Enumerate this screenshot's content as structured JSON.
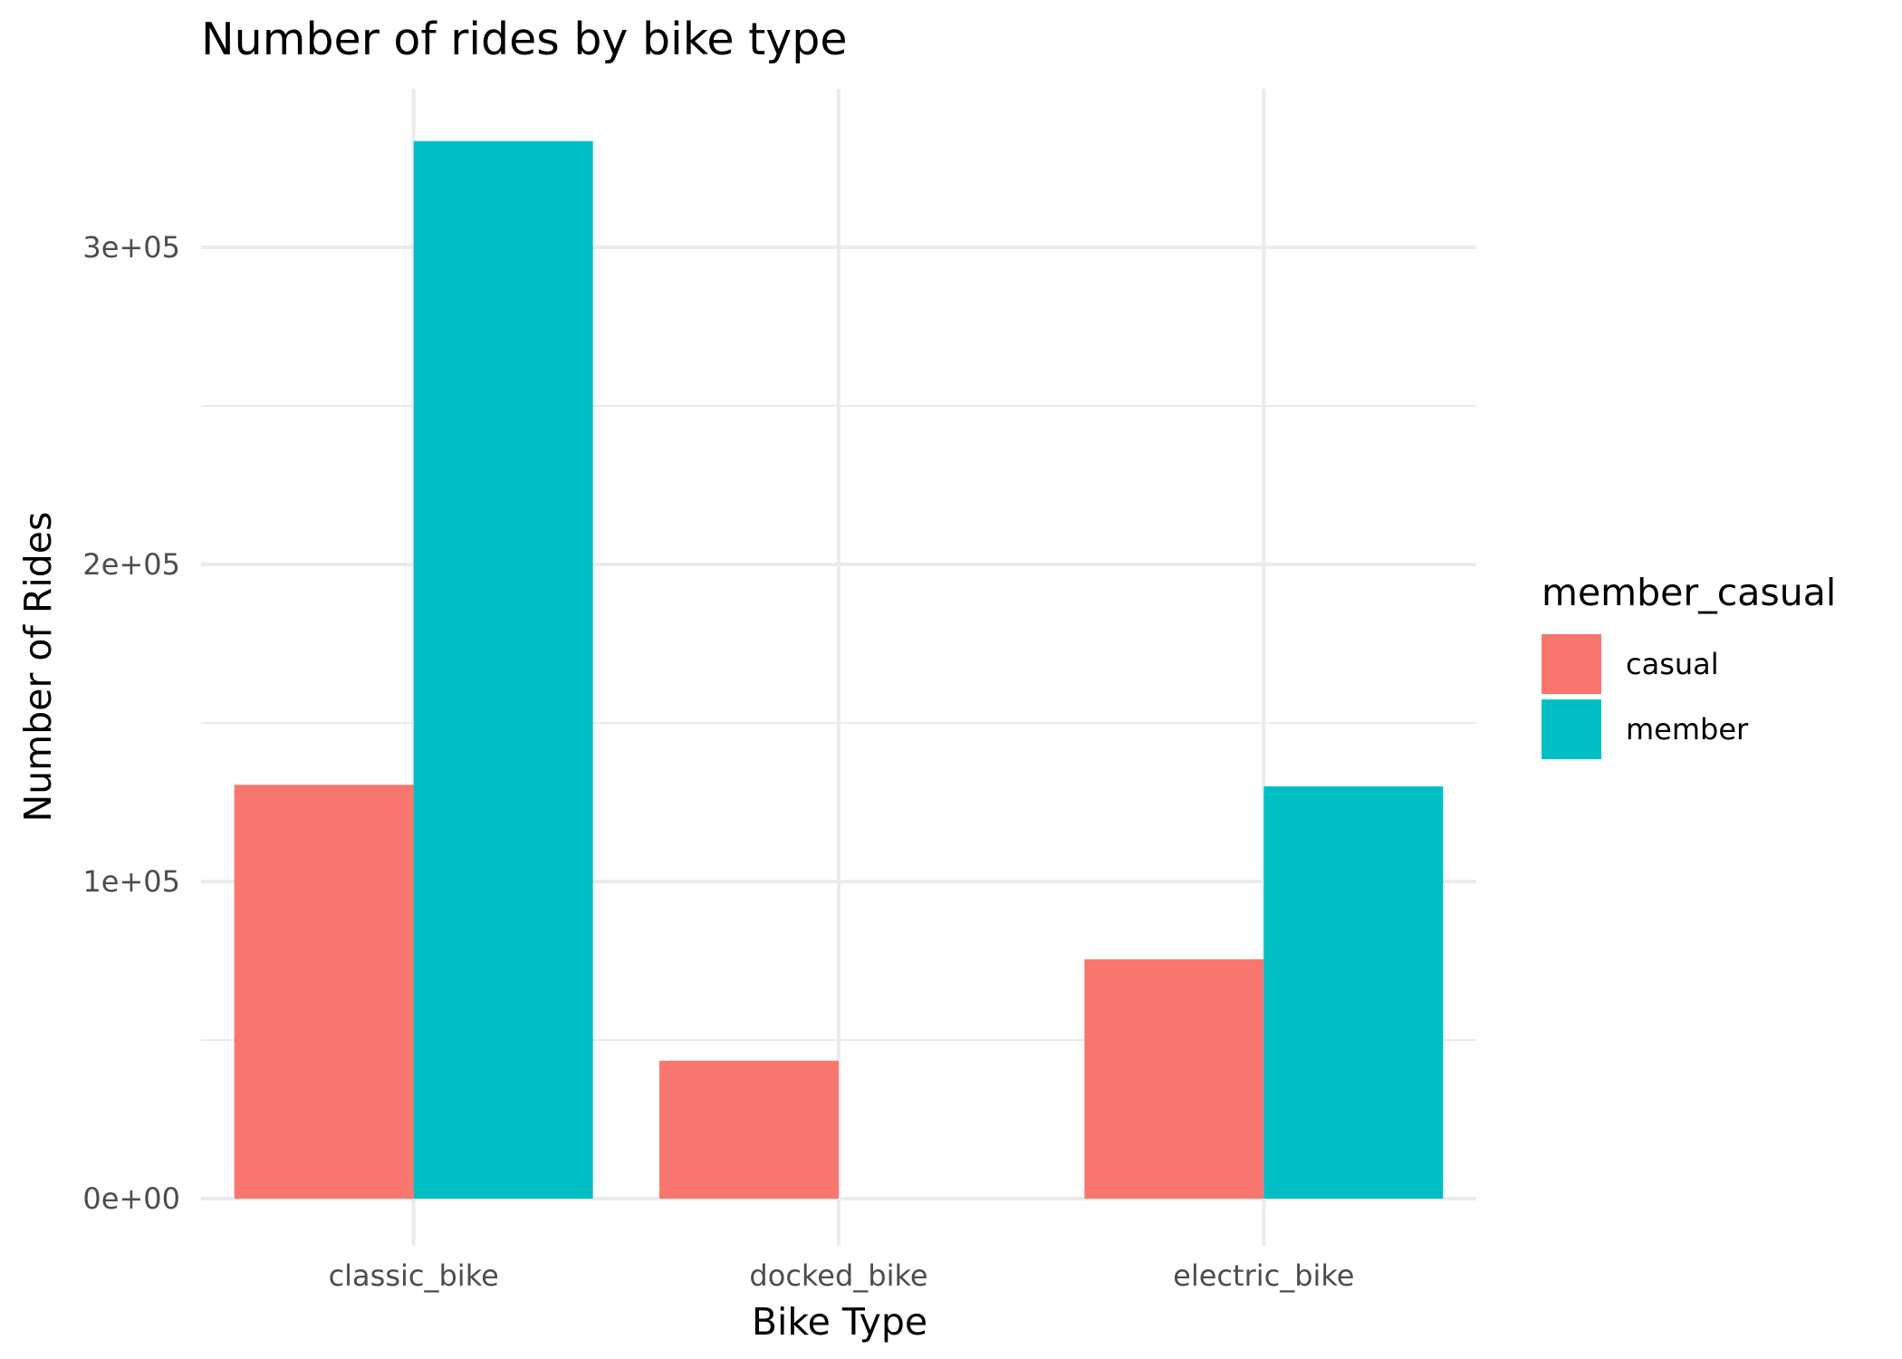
{
  "chart_data": {
    "type": "bar",
    "title": "Number of rides by bike type",
    "xlabel": "Bike Type",
    "ylabel": "Number of Rides",
    "categories": [
      "classic_bike",
      "docked_bike",
      "electric_bike"
    ],
    "series": [
      {
        "name": "casual",
        "color": "#F8766D",
        "values": [
          130500,
          43500,
          75500
        ]
      },
      {
        "name": "member",
        "color": "#00BFC4",
        "values": [
          333500,
          0,
          130000
        ]
      }
    ],
    "yticks": [
      0,
      100000,
      200000,
      300000
    ],
    "ytick_labels": [
      "0e+00",
      "1e+05",
      "2e+05",
      "3e+05"
    ],
    "ylim": [
      -12000,
      350000
    ],
    "grid": true,
    "legend": {
      "title": "member_casual",
      "position": "right"
    }
  }
}
